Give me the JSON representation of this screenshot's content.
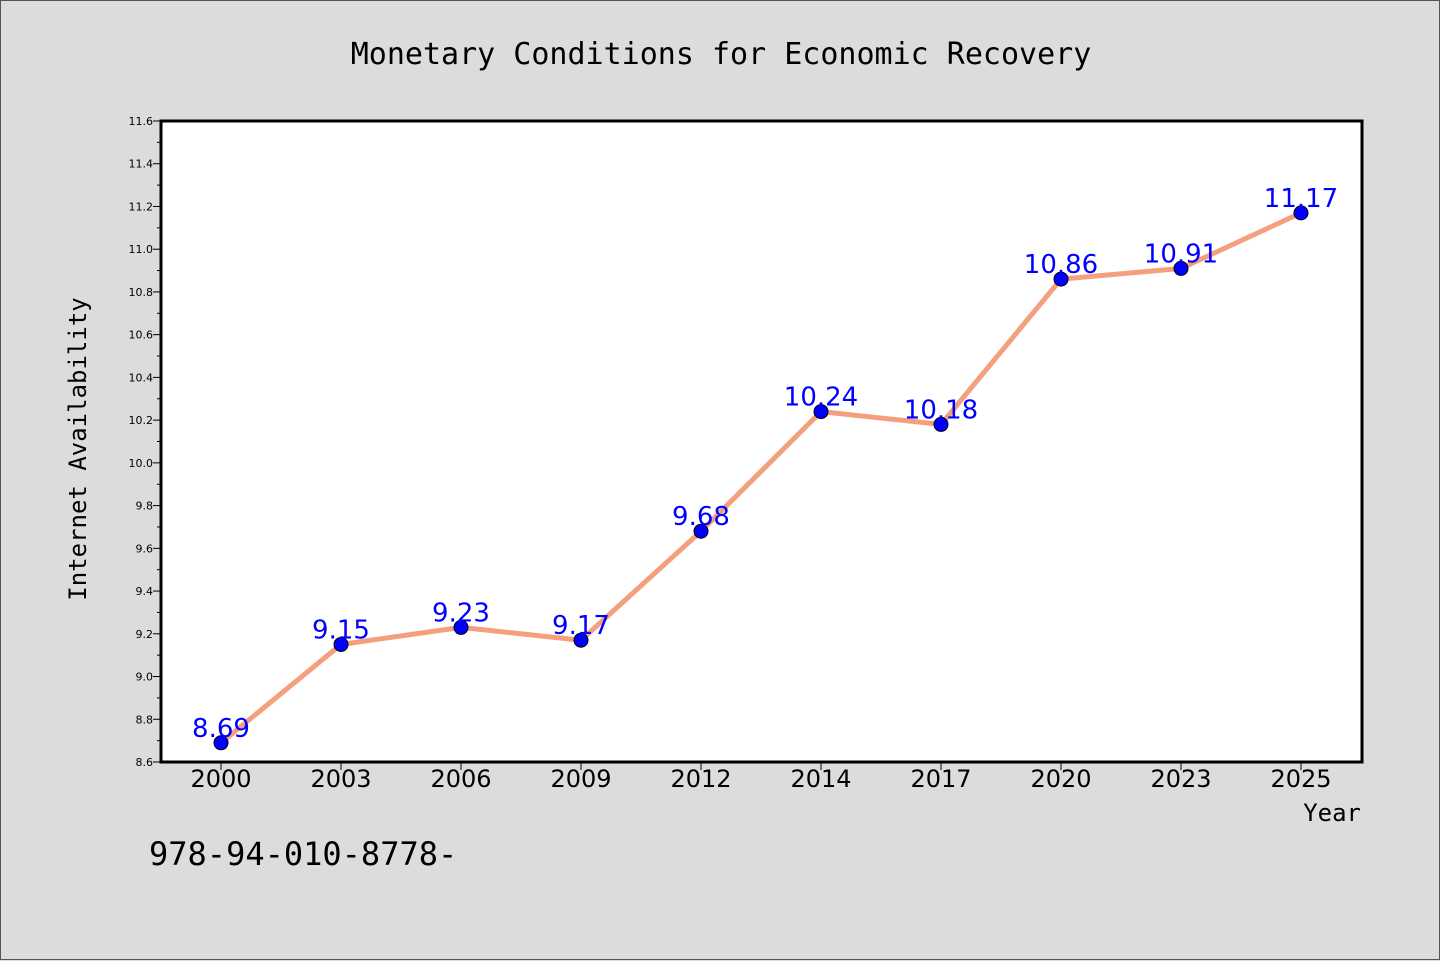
{
  "chart_data": {
    "type": "line",
    "title": "Monetary Conditions for Economic Recovery",
    "xlabel": "Year",
    "ylabel": "Internet Availability",
    "categories": [
      "2000",
      "2003",
      "2006",
      "2009",
      "2012",
      "2014",
      "2017",
      "2020",
      "2023",
      "2025"
    ],
    "series": [
      {
        "values": [
          8.69,
          9.15,
          9.23,
          9.17,
          9.68,
          10.24,
          10.18,
          10.86,
          10.91,
          11.17
        ],
        "labels": [
          "8.69",
          "9.15",
          "9.23",
          "9.17",
          "9.68",
          "10.24",
          "10.18",
          "10.86",
          "10.91",
          "11.17"
        ],
        "line_color": "#f4a07e",
        "marker_color": "#0000ff",
        "label_color": "#0000ff"
      }
    ],
    "ylim": [
      8.6,
      11.6
    ],
    "yticks": [
      "8.6",
      "8.8",
      "9.0",
      "9.2",
      "9.4",
      "9.6",
      "9.8",
      "10.0",
      "10.2",
      "10.4",
      "10.6",
      "10.8",
      "11.0",
      "11.2",
      "11.4",
      "11.6"
    ],
    "grid": false,
    "legend": "none",
    "background": "#dcdcdc",
    "plot_background": "#ffffff"
  },
  "annotation": {
    "isbn_text": "978-94-010-8778-"
  }
}
